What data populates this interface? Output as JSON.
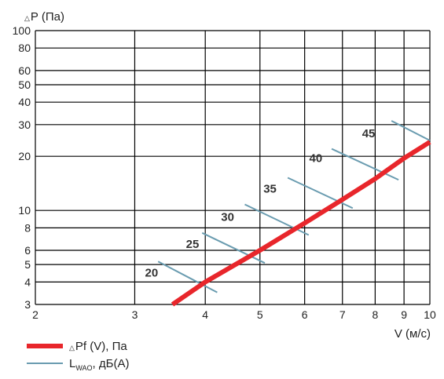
{
  "chart_data": {
    "type": "line",
    "x_scale": "log",
    "y_scale": "log",
    "xlim": [
      2,
      10
    ],
    "ylim": [
      3,
      100
    ],
    "grid": true,
    "xlabel": "V (м/с)",
    "ylabel_prefix": "△",
    "ylabel": "P (Па)",
    "x_ticks": [
      "2",
      "3",
      "4",
      "5",
      "6",
      "7",
      "8",
      "9",
      "10"
    ],
    "y_ticks": [
      "3",
      "4",
      "5",
      "6",
      "8",
      "10",
      "20",
      "30",
      "40",
      "50",
      "60",
      "80",
      "100"
    ],
    "series": [
      {
        "name": "Pf (V), Па",
        "name_prefix": "△",
        "color": "#e8262b",
        "x": [
          3.5,
          4,
          5,
          6,
          7,
          8,
          9,
          10
        ],
        "y": [
          3,
          4,
          6,
          8.5,
          11.5,
          15,
          19.5,
          24
        ]
      }
    ],
    "noise_lines": {
      "legend_main": "L",
      "legend_sub": "WAO",
      "legend_suffix": ", дБ(А)",
      "color": "#6a9cb0",
      "lines": [
        {
          "label": "20",
          "x": [
            3.3,
            4.2
          ],
          "y": [
            5.2,
            3.5
          ],
          "label_x": 3.3,
          "label_y": 4.5
        },
        {
          "label": "25",
          "x": [
            3.95,
            5.1
          ],
          "y": [
            7.5,
            5.1
          ],
          "label_x": 3.9,
          "label_y": 6.5
        },
        {
          "label": "30",
          "x": [
            4.7,
            6.1
          ],
          "y": [
            10.8,
            7.3
          ],
          "label_x": 4.5,
          "label_y": 9.2
        },
        {
          "label": "35",
          "x": [
            5.6,
            7.3
          ],
          "y": [
            15.2,
            10.3
          ],
          "label_x": 5.35,
          "label_y": 13.2
        },
        {
          "label": "40",
          "x": [
            6.7,
            8.8
          ],
          "y": [
            22,
            14.8
          ],
          "label_x": 6.45,
          "label_y": 19.5
        },
        {
          "label": "45",
          "x": [
            8.55,
            10
          ],
          "y": [
            31.5,
            24.5
          ],
          "label_x": 8.0,
          "label_y": 26.8
        }
      ]
    }
  }
}
